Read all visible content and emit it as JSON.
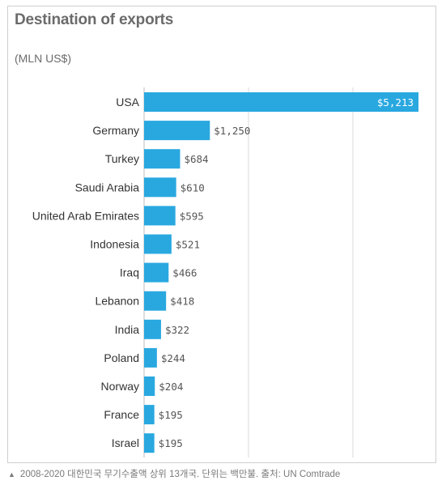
{
  "chart_data": {
    "type": "bar",
    "orientation": "horizontal",
    "title": "Destination of exports",
    "unit_label": "(MLN US$)",
    "categories": [
      "USA",
      "Germany",
      "Turkey",
      "Saudi Arabia",
      "United Arab Emirates",
      "Indonesia",
      "Iraq",
      "Lebanon",
      "India",
      "Poland",
      "Norway",
      "France",
      "Israel"
    ],
    "values": [
      5213,
      1250,
      684,
      610,
      595,
      521,
      466,
      418,
      322,
      244,
      204,
      195,
      195
    ],
    "value_labels": [
      "$5,213",
      "$1,250",
      "$684",
      "$610",
      "$595",
      "$521",
      "$466",
      "$418",
      "$322",
      "$244",
      "$204",
      "$195",
      "$195"
    ],
    "xlim": [
      0,
      5213
    ],
    "grid": true,
    "bar_color": "#29a8e0"
  },
  "caption": {
    "icon": "triangle-up-icon",
    "text": "2008-2020 대한민국 무기수출액 상위 13개국. 단위는 백만불. 출처: UN Comtrade"
  }
}
